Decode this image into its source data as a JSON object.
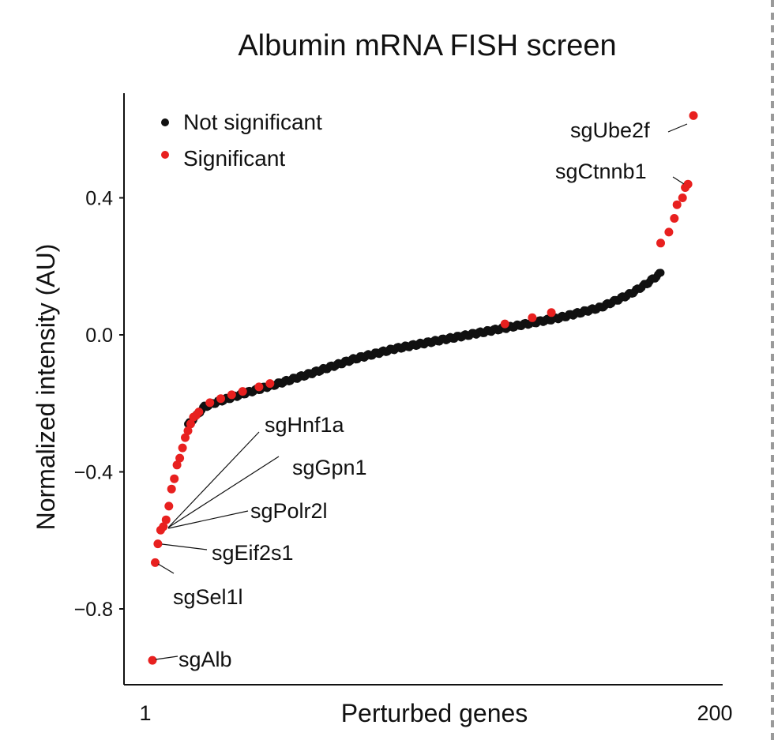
{
  "chart_data": {
    "type": "scatter",
    "title": "Albumin mRNA FISH screen",
    "xlabel": "Perturbed genes",
    "ylabel": "Normalized intensity (AU)",
    "x_tick_labels": [
      "1",
      "200"
    ],
    "y_ticks": [
      0.4,
      0.0,
      -0.4,
      -0.8
    ],
    "y_tick_labels": [
      "0.4",
      "0.0",
      "−0.4",
      "−0.8"
    ],
    "xlim": [
      1,
      200
    ],
    "ylim": [
      -1.0,
      0.7
    ],
    "grid": false,
    "legend_position": "top-left",
    "colors": {
      "not_significant": "#111111",
      "significant": "#e8201f"
    },
    "series": [
      {
        "name": "Not significant",
        "color": "#111111",
        "x_from": 14,
        "x_to": 187,
        "anchors": [
          [
            14,
            -0.263
          ],
          [
            20,
            -0.21
          ],
          [
            25,
            -0.195
          ],
          [
            35,
            -0.17
          ],
          [
            48,
            -0.14
          ],
          [
            60,
            -0.11
          ],
          [
            75,
            -0.07
          ],
          [
            90,
            -0.04
          ],
          [
            110,
            -0.01
          ],
          [
            130,
            0.02
          ],
          [
            150,
            0.05
          ],
          [
            165,
            0.08
          ],
          [
            176,
            0.12
          ],
          [
            182,
            0.15
          ],
          [
            187,
            0.18
          ]
        ]
      },
      {
        "name": "Significant",
        "color": "#e8201f",
        "points": [
          [
            1,
            -0.95
          ],
          [
            2,
            -0.665
          ],
          [
            3,
            -0.61
          ],
          [
            4,
            -0.57
          ],
          [
            5,
            -0.56
          ],
          [
            6,
            -0.54
          ],
          [
            7,
            -0.5
          ],
          [
            8,
            -0.45
          ],
          [
            9,
            -0.42
          ],
          [
            10,
            -0.38
          ],
          [
            11,
            -0.36
          ],
          [
            12,
            -0.33
          ],
          [
            13,
            -0.3
          ],
          [
            14,
            -0.28
          ],
          [
            15,
            -0.26
          ],
          [
            16,
            -0.24
          ],
          [
            17,
            -0.235
          ],
          [
            18,
            -0.225
          ],
          [
            22,
            -0.198
          ],
          [
            26,
            -0.186
          ],
          [
            30,
            -0.175
          ],
          [
            34,
            -0.165
          ],
          [
            40,
            -0.152
          ],
          [
            44,
            -0.142
          ],
          [
            130,
            0.032
          ],
          [
            140,
            0.05
          ],
          [
            147,
            0.065
          ],
          [
            187,
            0.268
          ],
          [
            190,
            0.3
          ],
          [
            192,
            0.34
          ],
          [
            193,
            0.38
          ],
          [
            195,
            0.4
          ],
          [
            196,
            0.43
          ],
          [
            197,
            0.44
          ],
          [
            199,
            0.64
          ]
        ]
      }
    ],
    "annotations": [
      {
        "label": "sgUbe2f",
        "x": 199,
        "y": 0.64
      },
      {
        "label": "sgCtnnb1",
        "x": 197,
        "y": 0.44
      },
      {
        "label": "sgHnf1a",
        "x": 5,
        "y": -0.56
      },
      {
        "label": "sgGpn1",
        "x": 5,
        "y": -0.56
      },
      {
        "label": "sgPolr2l",
        "x": 6,
        "y": -0.54
      },
      {
        "label": "sgEif2s1",
        "x": 3,
        "y": -0.61
      },
      {
        "label": "sgSel1l",
        "x": 2,
        "y": -0.665
      },
      {
        "label": "sgAlb",
        "x": 1,
        "y": -0.95
      }
    ]
  }
}
